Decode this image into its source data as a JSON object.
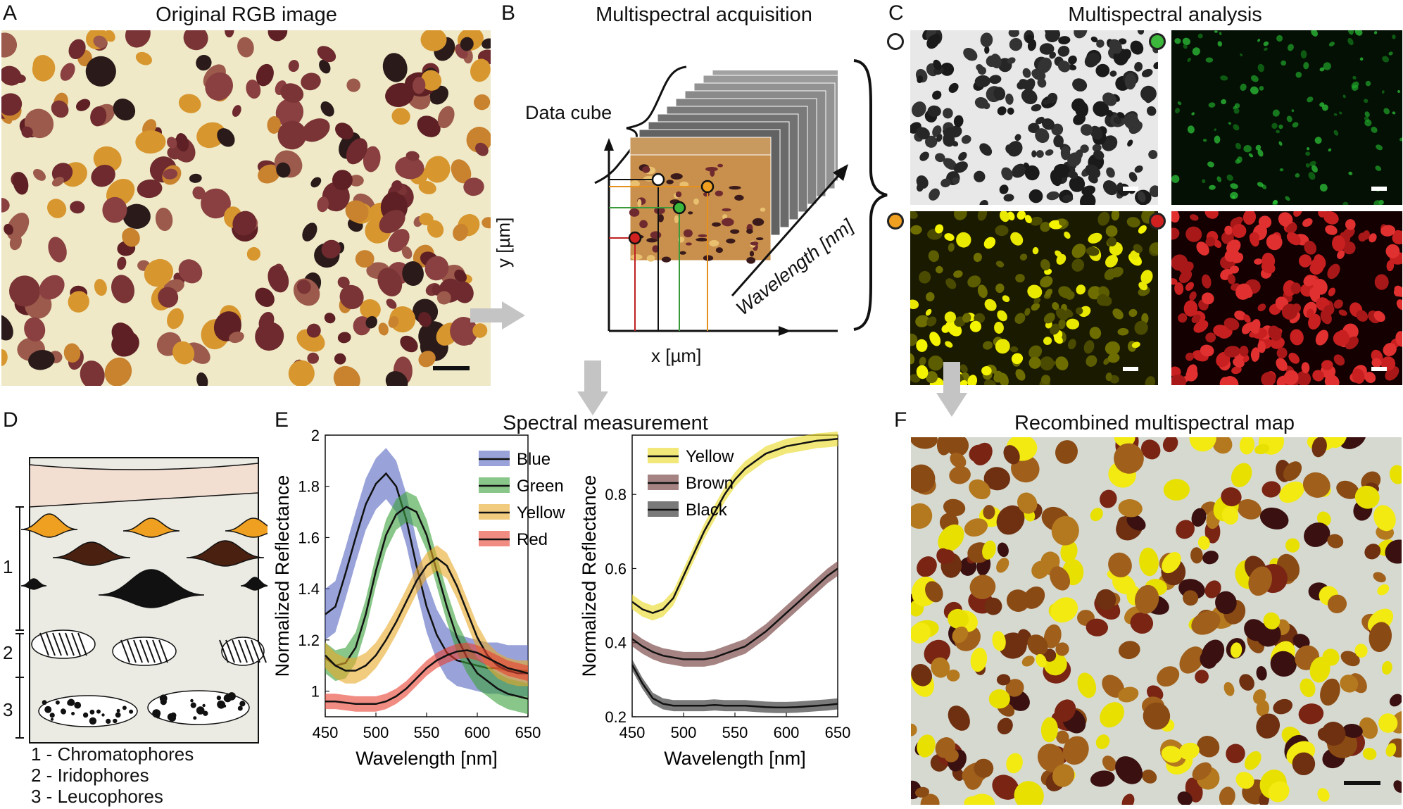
{
  "panels": {
    "A": {
      "letter": "A",
      "title": "Original RGB image"
    },
    "B": {
      "letter": "B",
      "title": "Multispectral acquisition",
      "cube_label": "Data cube",
      "y_label": "y [µm]",
      "x_label": "x [µm]",
      "wavelength_label": "Wavelength [nm]"
    },
    "C": {
      "letter": "C",
      "title": "Multispectral analysis",
      "channel_colors": [
        "#ffffff",
        "#3cb83c",
        "#f0a020",
        "#d02020"
      ]
    },
    "D": {
      "letter": "D",
      "layers": [
        "1",
        "2",
        "3"
      ],
      "legend": [
        "1 - Chromatophores",
        "2 - Iridophores",
        "3 - Leucophores"
      ]
    },
    "E": {
      "letter": "E",
      "title": "Spectral measurement"
    },
    "F": {
      "letter": "F",
      "title": "Recombined multispectral map"
    }
  },
  "chart_data": [
    {
      "type": "line",
      "title": "",
      "xlabel": "Wavelength [nm]",
      "ylabel": "Normalized Reflectance",
      "xlim": [
        450,
        650
      ],
      "ylim": [
        0.9,
        2.0
      ],
      "xticks": [
        450,
        500,
        550,
        600,
        650
      ],
      "yticks": [
        1,
        1.2,
        1.4,
        1.6,
        1.8,
        2
      ],
      "legend_position": "top-right",
      "x": [
        450,
        460,
        470,
        480,
        490,
        500,
        510,
        520,
        530,
        540,
        550,
        560,
        570,
        580,
        590,
        600,
        610,
        620,
        630,
        640,
        650
      ],
      "series": [
        {
          "name": "Blue",
          "color": "#5566c0",
          "values": [
            1.3,
            1.33,
            1.46,
            1.6,
            1.73,
            1.81,
            1.85,
            1.8,
            1.67,
            1.49,
            1.33,
            1.22,
            1.15,
            1.12,
            1.11,
            1.1,
            1.09,
            1.09,
            1.08,
            1.08,
            1.08
          ],
          "band": 0.1
        },
        {
          "name": "Green",
          "color": "#3aa03a",
          "values": [
            1.13,
            1.1,
            1.11,
            1.17,
            1.3,
            1.47,
            1.61,
            1.69,
            1.72,
            1.7,
            1.61,
            1.47,
            1.33,
            1.21,
            1.13,
            1.07,
            1.04,
            1.01,
            0.99,
            0.98,
            0.97
          ],
          "band": 0.06
        },
        {
          "name": "Yellow",
          "color": "#e8a828",
          "values": [
            1.14,
            1.1,
            1.08,
            1.08,
            1.1,
            1.14,
            1.2,
            1.27,
            1.35,
            1.43,
            1.49,
            1.52,
            1.49,
            1.41,
            1.31,
            1.21,
            1.14,
            1.1,
            1.08,
            1.07,
            1.07
          ],
          "band": 0.05
        },
        {
          "name": "Red",
          "color": "#e84030",
          "values": [
            0.96,
            0.96,
            0.955,
            0.95,
            0.95,
            0.95,
            0.96,
            0.98,
            1.01,
            1.05,
            1.09,
            1.12,
            1.14,
            1.155,
            1.16,
            1.15,
            1.13,
            1.11,
            1.09,
            1.08,
            1.07
          ],
          "band": 0.03
        }
      ]
    },
    {
      "type": "line",
      "title": "",
      "xlabel": "Wavelength [nm]",
      "ylabel": "Normalized Reflectance",
      "xlim": [
        450,
        650
      ],
      "ylim": [
        0.2,
        0.96
      ],
      "xticks": [
        450,
        500,
        550,
        600,
        650
      ],
      "yticks": [
        0.2,
        0.4,
        0.6,
        0.8
      ],
      "legend_position": "top-left",
      "x": [
        450,
        460,
        470,
        480,
        490,
        500,
        510,
        520,
        530,
        540,
        550,
        560,
        570,
        580,
        590,
        600,
        610,
        620,
        630,
        640,
        650
      ],
      "series": [
        {
          "name": "Yellow",
          "color": "#e8d820",
          "values": [
            0.51,
            0.49,
            0.48,
            0.49,
            0.52,
            0.58,
            0.64,
            0.7,
            0.75,
            0.8,
            0.84,
            0.87,
            0.89,
            0.91,
            0.92,
            0.93,
            0.935,
            0.94,
            0.945,
            0.947,
            0.95
          ],
          "band": 0.02
        },
        {
          "name": "Brown",
          "color": "#6a3030",
          "values": [
            0.41,
            0.39,
            0.375,
            0.365,
            0.36,
            0.355,
            0.355,
            0.355,
            0.36,
            0.37,
            0.38,
            0.39,
            0.41,
            0.43,
            0.455,
            0.48,
            0.505,
            0.53,
            0.555,
            0.58,
            0.6
          ],
          "band": 0.02
        },
        {
          "name": "Black",
          "color": "#222222",
          "values": [
            0.34,
            0.29,
            0.25,
            0.235,
            0.23,
            0.23,
            0.23,
            0.23,
            0.232,
            0.23,
            0.23,
            0.23,
            0.228,
            0.226,
            0.225,
            0.225,
            0.226,
            0.228,
            0.23,
            0.232,
            0.235
          ],
          "band": 0.015
        }
      ]
    }
  ]
}
